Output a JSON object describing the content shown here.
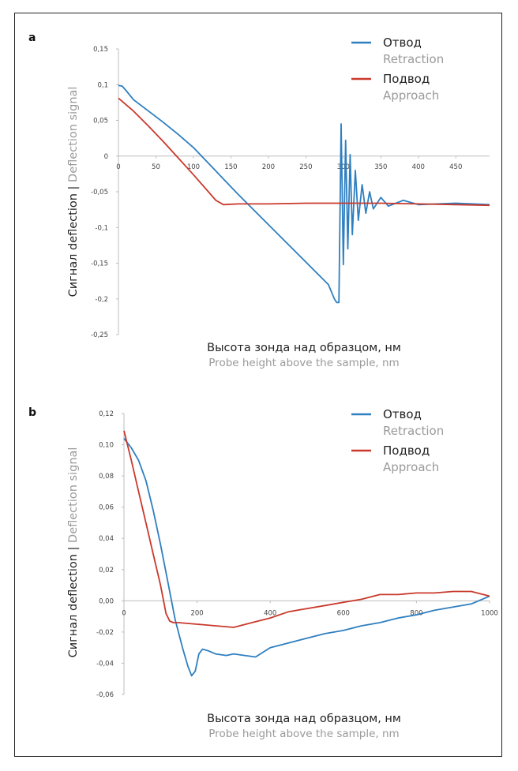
{
  "chart_data": [
    {
      "panel": "a",
      "type": "line",
      "xlabel": "Высота зонда над образцом, нм",
      "xlabel_en": "Probe height above the sample, nm",
      "ylabel": "Сигнал deflection",
      "ylabel_sep": " | ",
      "ylabel_en": "Deflection signal",
      "xlim": [
        0,
        495
      ],
      "ylim": [
        -0.25,
        0.15
      ],
      "x_ticks": [
        "0",
        "50",
        "100",
        "150",
        "200",
        "250",
        "300",
        "350",
        "400",
        "450"
      ],
      "y_ticks": [
        "0,15",
        "0,1",
        "0,05",
        "0",
        "-0,05",
        "-0,1",
        "-0,15",
        "-0,2",
        "-0,25"
      ],
      "legend_position": "top-right",
      "series": [
        {
          "name": "Отвод",
          "name_en": "Retraction",
          "color": "#2e7fc0",
          "x": [
            0,
            5,
            10,
            20,
            40,
            60,
            80,
            100,
            120,
            140,
            160,
            180,
            200,
            220,
            240,
            260,
            280,
            288,
            291,
            294,
            297,
            300,
            303,
            306,
            309,
            312,
            316,
            320,
            325,
            330,
            335,
            340,
            350,
            360,
            380,
            400,
            450,
            495
          ],
          "y": [
            0.099,
            0.098,
            0.092,
            0.079,
            0.063,
            0.047,
            0.03,
            0.012,
            -0.01,
            -0.032,
            -0.054,
            -0.075,
            -0.096,
            -0.117,
            -0.138,
            -0.159,
            -0.18,
            -0.2,
            -0.205,
            -0.205,
            0.045,
            -0.152,
            0.022,
            -0.13,
            0.002,
            -0.11,
            -0.02,
            -0.09,
            -0.04,
            -0.08,
            -0.05,
            -0.074,
            -0.058,
            -0.07,
            -0.062,
            -0.068,
            -0.066,
            -0.068
          ]
        },
        {
          "name": "Подвод",
          "name_en": "Approach",
          "color": "#c9392b",
          "x": [
            0,
            20,
            40,
            60,
            80,
            100,
            120,
            130,
            140,
            160,
            200,
            250,
            300,
            350,
            400,
            450,
            495
          ],
          "y": [
            0.081,
            0.063,
            0.042,
            0.02,
            -0.003,
            -0.026,
            -0.05,
            -0.062,
            -0.068,
            -0.067,
            -0.067,
            -0.066,
            -0.066,
            -0.066,
            -0.067,
            -0.068,
            -0.069
          ]
        }
      ]
    },
    {
      "panel": "b",
      "type": "line",
      "xlabel": "Высота зонда над образцом, нм",
      "xlabel_en": "Probe height above the sample, nm",
      "ylabel": "Сигнал deflection",
      "ylabel_sep": " | ",
      "ylabel_en": "Deflection signal",
      "xlim": [
        0,
        1000
      ],
      "ylim": [
        -0.06,
        0.12
      ],
      "x_ticks": [
        "0",
        "200",
        "400",
        "600",
        "800",
        "1000"
      ],
      "y_ticks": [
        "0,12",
        "0,10",
        "0,08",
        "0,06",
        "0,04",
        "0,02",
        "0,00",
        "-0,02",
        "-0,04",
        "-0,06"
      ],
      "legend_position": "top-right",
      "series": [
        {
          "name": "Отвод",
          "name_en": "Retraction",
          "color": "#2e7fc0",
          "x": [
            0,
            20,
            40,
            60,
            80,
            100,
            120,
            140,
            160,
            175,
            185,
            195,
            205,
            215,
            230,
            250,
            280,
            300,
            330,
            360,
            380,
            400,
            450,
            500,
            550,
            600,
            650,
            700,
            750,
            800,
            850,
            900,
            950,
            1000
          ],
          "y": [
            0.104,
            0.098,
            0.09,
            0.077,
            0.058,
            0.036,
            0.012,
            -0.012,
            -0.03,
            -0.042,
            -0.048,
            -0.045,
            -0.034,
            -0.031,
            -0.032,
            -0.034,
            -0.035,
            -0.034,
            -0.035,
            -0.036,
            -0.033,
            -0.03,
            -0.027,
            -0.024,
            -0.021,
            -0.019,
            -0.016,
            -0.014,
            -0.011,
            -0.009,
            -0.006,
            -0.004,
            -0.002,
            0.003
          ]
        },
        {
          "name": "Подвод",
          "name_en": "Approach",
          "color": "#c9392b",
          "x": [
            0,
            20,
            40,
            60,
            80,
            100,
            115,
            125,
            135,
            150,
            200,
            250,
            300,
            350,
            400,
            450,
            500,
            550,
            600,
            650,
            700,
            750,
            800,
            850,
            900,
            950,
            1000
          ],
          "y": [
            0.109,
            0.09,
            0.07,
            0.05,
            0.03,
            0.01,
            -0.008,
            -0.013,
            -0.014,
            -0.014,
            -0.015,
            -0.016,
            -0.017,
            -0.014,
            -0.011,
            -0.007,
            -0.005,
            -0.003,
            -0.001,
            0.001,
            0.004,
            0.004,
            0.005,
            0.005,
            0.006,
            0.006,
            0.003
          ]
        }
      ]
    }
  ]
}
